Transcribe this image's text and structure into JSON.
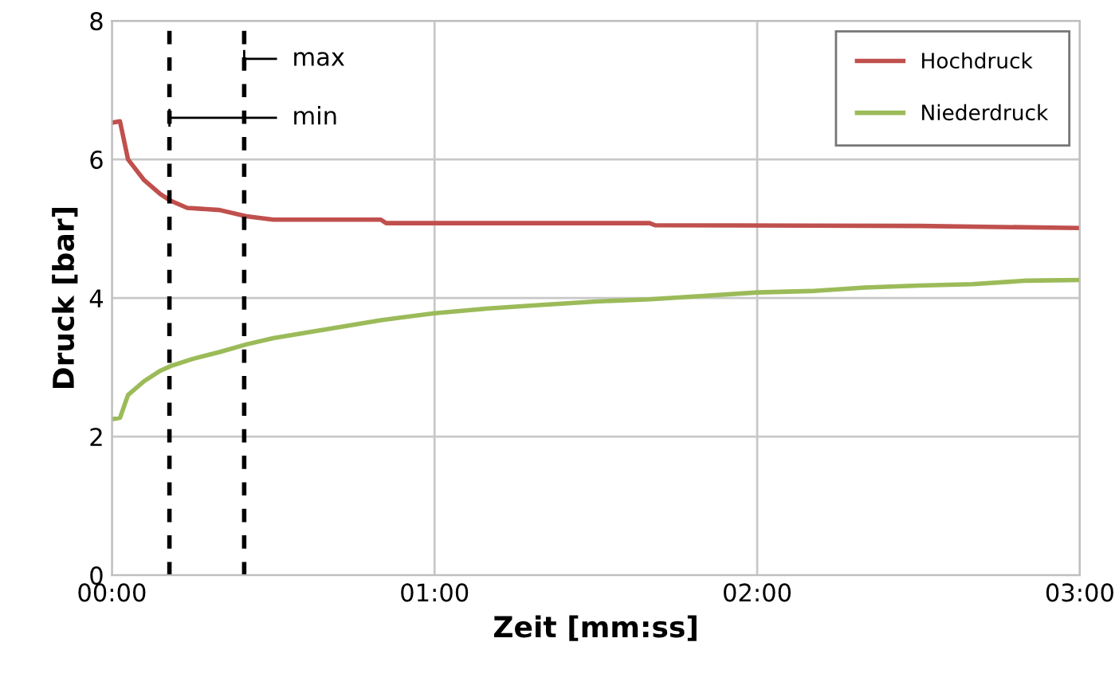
{
  "chart_data": {
    "type": "line",
    "xlabel": "Zeit [mm:ss]",
    "ylabel": "Druck [bar]",
    "xlim": [
      0,
      180
    ],
    "xticks": [
      {
        "value": 0,
        "label": "00:00"
      },
      {
        "value": 60,
        "label": "01:00"
      },
      {
        "value": 120,
        "label": "02:00"
      },
      {
        "value": 180,
        "label": "03:00"
      }
    ],
    "ylim": [
      0,
      8
    ],
    "yticks": [
      0,
      2,
      4,
      6,
      8
    ],
    "grid": true,
    "legend": "top right",
    "marker": "none",
    "line_style": "solid",
    "series": [
      {
        "name": "Hochdruck",
        "color": "#c0504d",
        "x": [
          0,
          1.5,
          3,
          6,
          9,
          11,
          14,
          20,
          25,
          30,
          50,
          51,
          100,
          101,
          150,
          180
        ],
        "values": [
          6.53,
          6.55,
          6.0,
          5.7,
          5.5,
          5.4,
          5.3,
          5.27,
          5.18,
          5.13,
          5.13,
          5.08,
          5.08,
          5.05,
          5.04,
          5.01
        ]
      },
      {
        "name": "Niederdruck",
        "color": "#9bbb59",
        "x": [
          0,
          1.5,
          3,
          6,
          9,
          11,
          15,
          20,
          25,
          30,
          40,
          50,
          60,
          70,
          80,
          90,
          100,
          110,
          120,
          130,
          140,
          150,
          160,
          170,
          180
        ],
        "values": [
          2.25,
          2.27,
          2.6,
          2.8,
          2.95,
          3.02,
          3.12,
          3.22,
          3.33,
          3.42,
          3.55,
          3.68,
          3.78,
          3.85,
          3.9,
          3.95,
          3.98,
          4.03,
          4.08,
          4.1,
          4.15,
          4.18,
          4.2,
          4.25,
          4.26
        ]
      }
    ],
    "ref_lines": [
      {
        "axis": "x",
        "value": 10.7,
        "label": "min",
        "color": "#000000",
        "line_style": "dashed"
      },
      {
        "axis": "x",
        "value": 24.6,
        "label": "max",
        "color": "#000000",
        "line_style": "dashed"
      }
    ]
  }
}
